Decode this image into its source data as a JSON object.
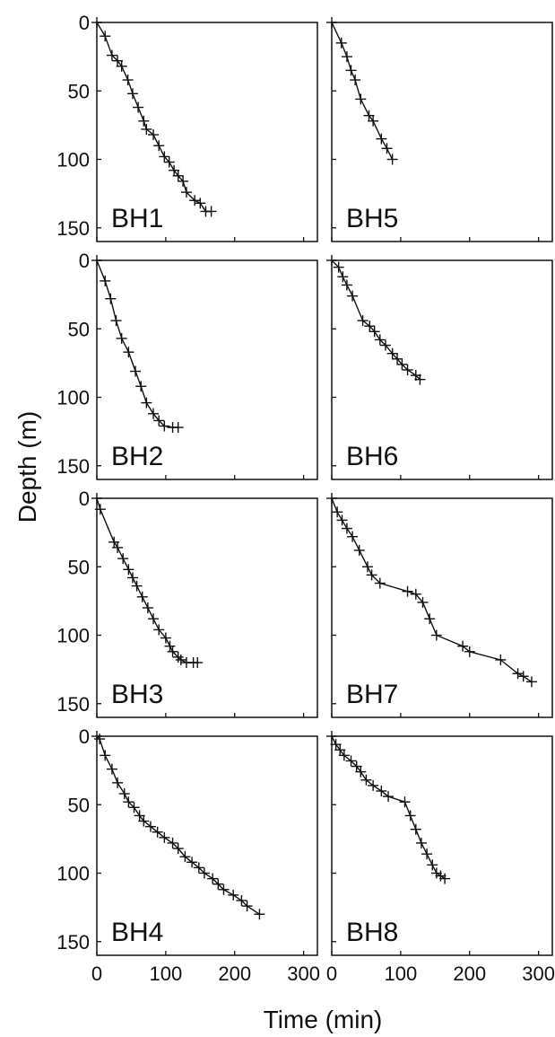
{
  "figure": {
    "xlabel": "Time (min)",
    "ylabel": "Depth (m)",
    "xticks": [
      0,
      100,
      200,
      300
    ],
    "yticks": [
      0,
      50,
      100,
      150
    ]
  },
  "chart_data": [
    {
      "type": "line",
      "label": "BH1",
      "xlim": [
        0,
        320
      ],
      "ylim": [
        160,
        0
      ],
      "marker": "plus",
      "points": [
        [
          0,
          0
        ],
        [
          12,
          10
        ],
        [
          22,
          24
        ],
        [
          30,
          28
        ],
        [
          36,
          32
        ],
        [
          45,
          42
        ],
        [
          52,
          52
        ],
        [
          60,
          62
        ],
        [
          68,
          72
        ],
        [
          72,
          78
        ],
        [
          82,
          82
        ],
        [
          90,
          90
        ],
        [
          98,
          98
        ],
        [
          105,
          102
        ],
        [
          112,
          108
        ],
        [
          118,
          112
        ],
        [
          125,
          116
        ],
        [
          130,
          124
        ],
        [
          142,
          130
        ],
        [
          150,
          132
        ],
        [
          158,
          138
        ],
        [
          166,
          138
        ]
      ]
    },
    {
      "type": "line",
      "label": "BH5",
      "xlim": [
        0,
        320
      ],
      "ylim": [
        160,
        0
      ],
      "marker": "plus",
      "points": [
        [
          0,
          0
        ],
        [
          14,
          15
        ],
        [
          22,
          25
        ],
        [
          28,
          35
        ],
        [
          34,
          42
        ],
        [
          42,
          56
        ],
        [
          54,
          68
        ],
        [
          60,
          72
        ],
        [
          72,
          85
        ],
        [
          80,
          92
        ],
        [
          88,
          100
        ]
      ]
    },
    {
      "type": "line",
      "label": "BH2",
      "xlim": [
        0,
        320
      ],
      "ylim": [
        160,
        0
      ],
      "marker": "plus",
      "points": [
        [
          0,
          0
        ],
        [
          12,
          15
        ],
        [
          20,
          28
        ],
        [
          28,
          44
        ],
        [
          36,
          57
        ],
        [
          46,
          67
        ],
        [
          56,
          81
        ],
        [
          64,
          92
        ],
        [
          72,
          104
        ],
        [
          82,
          112
        ],
        [
          90,
          117
        ],
        [
          98,
          121
        ],
        [
          110,
          122
        ],
        [
          118,
          122
        ]
      ]
    },
    {
      "type": "line",
      "label": "BH6",
      "xlim": [
        0,
        320
      ],
      "ylim": [
        160,
        0
      ],
      "marker": "plus",
      "points": [
        [
          0,
          0
        ],
        [
          10,
          5
        ],
        [
          16,
          12
        ],
        [
          22,
          18
        ],
        [
          30,
          26
        ],
        [
          45,
          44
        ],
        [
          55,
          48
        ],
        [
          62,
          52
        ],
        [
          70,
          58
        ],
        [
          78,
          62
        ],
        [
          88,
          68
        ],
        [
          95,
          72
        ],
        [
          102,
          76
        ],
        [
          110,
          80
        ],
        [
          122,
          84
        ],
        [
          128,
          87
        ]
      ]
    },
    {
      "type": "line",
      "label": "BH3",
      "xlim": [
        0,
        320
      ],
      "ylim": [
        160,
        0
      ],
      "marker": "plus",
      "points": [
        [
          0,
          0
        ],
        [
          5,
          8
        ],
        [
          25,
          32
        ],
        [
          30,
          36
        ],
        [
          38,
          44
        ],
        [
          46,
          52
        ],
        [
          52,
          58
        ],
        [
          58,
          64
        ],
        [
          66,
          72
        ],
        [
          74,
          80
        ],
        [
          82,
          88
        ],
        [
          90,
          96
        ],
        [
          100,
          102
        ],
        [
          106,
          108
        ],
        [
          110,
          112
        ],
        [
          118,
          116
        ],
        [
          122,
          118
        ],
        [
          130,
          120
        ],
        [
          140,
          120
        ],
        [
          146,
          120
        ]
      ]
    },
    {
      "type": "line",
      "label": "BH7",
      "xlim": [
        0,
        320
      ],
      "ylim": [
        160,
        0
      ],
      "marker": "plus",
      "points": [
        [
          0,
          0
        ],
        [
          8,
          10
        ],
        [
          15,
          16
        ],
        [
          22,
          22
        ],
        [
          30,
          28
        ],
        [
          40,
          38
        ],
        [
          52,
          50
        ],
        [
          58,
          56
        ],
        [
          70,
          62
        ],
        [
          110,
          68
        ],
        [
          122,
          70
        ],
        [
          132,
          76
        ],
        [
          142,
          88
        ],
        [
          152,
          100
        ],
        [
          190,
          108
        ],
        [
          200,
          112
        ],
        [
          245,
          118
        ],
        [
          270,
          128
        ],
        [
          278,
          130
        ],
        [
          290,
          134
        ]
      ]
    },
    {
      "type": "line",
      "label": "BH4",
      "xlim": [
        0,
        320
      ],
      "ylim": [
        160,
        0
      ],
      "marker": "plus",
      "points": [
        [
          0,
          0
        ],
        [
          4,
          2
        ],
        [
          12,
          14
        ],
        [
          22,
          24
        ],
        [
          30,
          34
        ],
        [
          40,
          42
        ],
        [
          46,
          48
        ],
        [
          54,
          52
        ],
        [
          62,
          58
        ],
        [
          68,
          62
        ],
        [
          78,
          66
        ],
        [
          88,
          70
        ],
        [
          98,
          74
        ],
        [
          110,
          78
        ],
        [
          118,
          82
        ],
        [
          128,
          88
        ],
        [
          138,
          92
        ],
        [
          148,
          96
        ],
        [
          156,
          100
        ],
        [
          168,
          104
        ],
        [
          176,
          108
        ],
        [
          184,
          112
        ],
        [
          198,
          116
        ],
        [
          210,
          120
        ],
        [
          218,
          124
        ],
        [
          236,
          130
        ]
      ]
    },
    {
      "type": "line",
      "label": "BH8",
      "xlim": [
        0,
        320
      ],
      "ylim": [
        160,
        0
      ],
      "marker": "plus",
      "points": [
        [
          0,
          0
        ],
        [
          6,
          6
        ],
        [
          12,
          10
        ],
        [
          18,
          14
        ],
        [
          28,
          18
        ],
        [
          36,
          22
        ],
        [
          42,
          26
        ],
        [
          50,
          32
        ],
        [
          60,
          36
        ],
        [
          72,
          40
        ],
        [
          82,
          44
        ],
        [
          106,
          48
        ],
        [
          114,
          58
        ],
        [
          122,
          68
        ],
        [
          130,
          78
        ],
        [
          138,
          86
        ],
        [
          146,
          94
        ],
        [
          152,
          100
        ],
        [
          158,
          102
        ],
        [
          164,
          104
        ]
      ]
    }
  ]
}
